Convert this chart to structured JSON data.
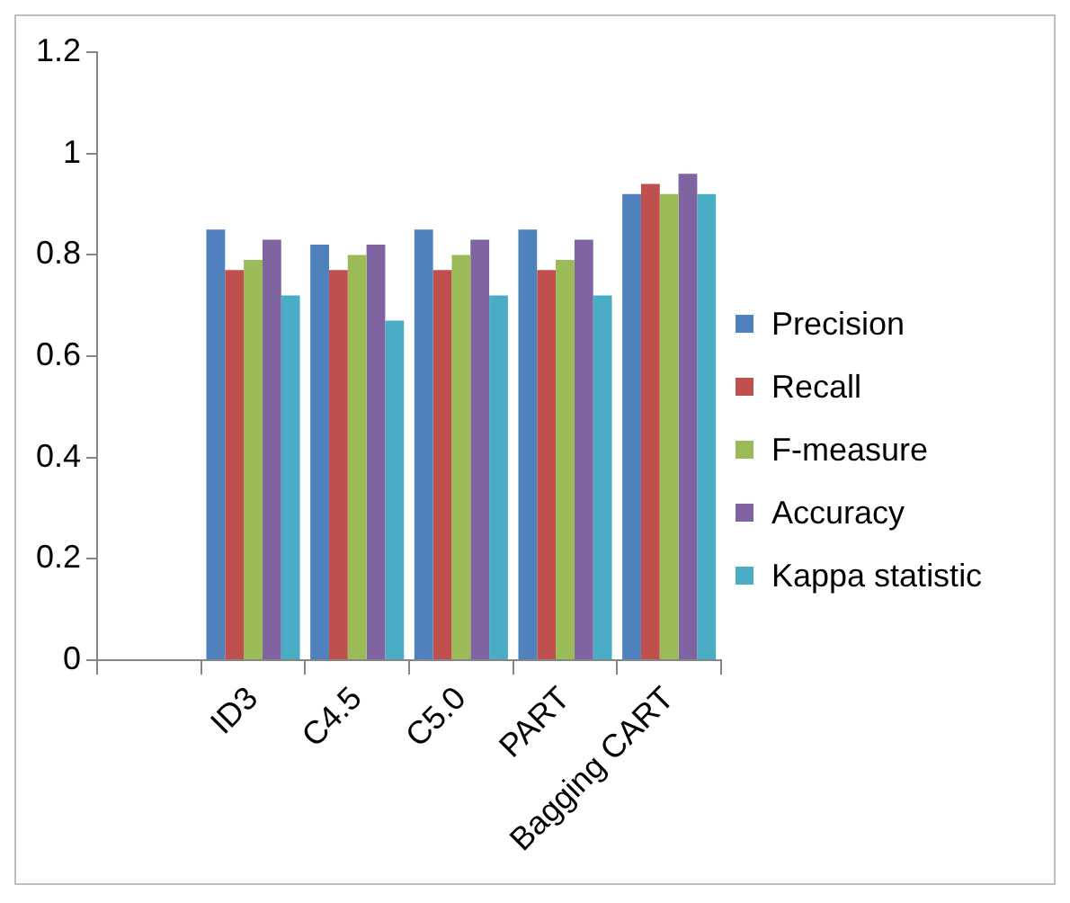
{
  "chart_data": {
    "type": "bar",
    "categories": [
      null,
      "ID3",
      "C4.5",
      "C5.0",
      "PART",
      "Bagging CART"
    ],
    "series": [
      {
        "name": "Precision",
        "color": "#4f81bd",
        "values": [
          null,
          0.85,
          0.82,
          0.85,
          0.85,
          0.92
        ]
      },
      {
        "name": "Recall",
        "color": "#c0504d",
        "values": [
          null,
          0.77,
          0.77,
          0.77,
          0.77,
          0.94
        ]
      },
      {
        "name": "F-measure",
        "color": "#9bbb59",
        "values": [
          null,
          0.79,
          0.8,
          0.8,
          0.79,
          0.92
        ]
      },
      {
        "name": "Accuracy",
        "color": "#8064a2",
        "values": [
          null,
          0.83,
          0.82,
          0.83,
          0.83,
          0.96
        ]
      },
      {
        "name": "Kappa statistic",
        "color": "#4bacc6",
        "values": [
          null,
          0.72,
          0.67,
          0.72,
          0.72,
          0.92
        ]
      }
    ],
    "ylim": [
      0,
      1.2
    ],
    "yticks": [
      0,
      0.2,
      0.4,
      0.6,
      0.8,
      1,
      1.2
    ],
    "grid": false,
    "legend": "right"
  }
}
